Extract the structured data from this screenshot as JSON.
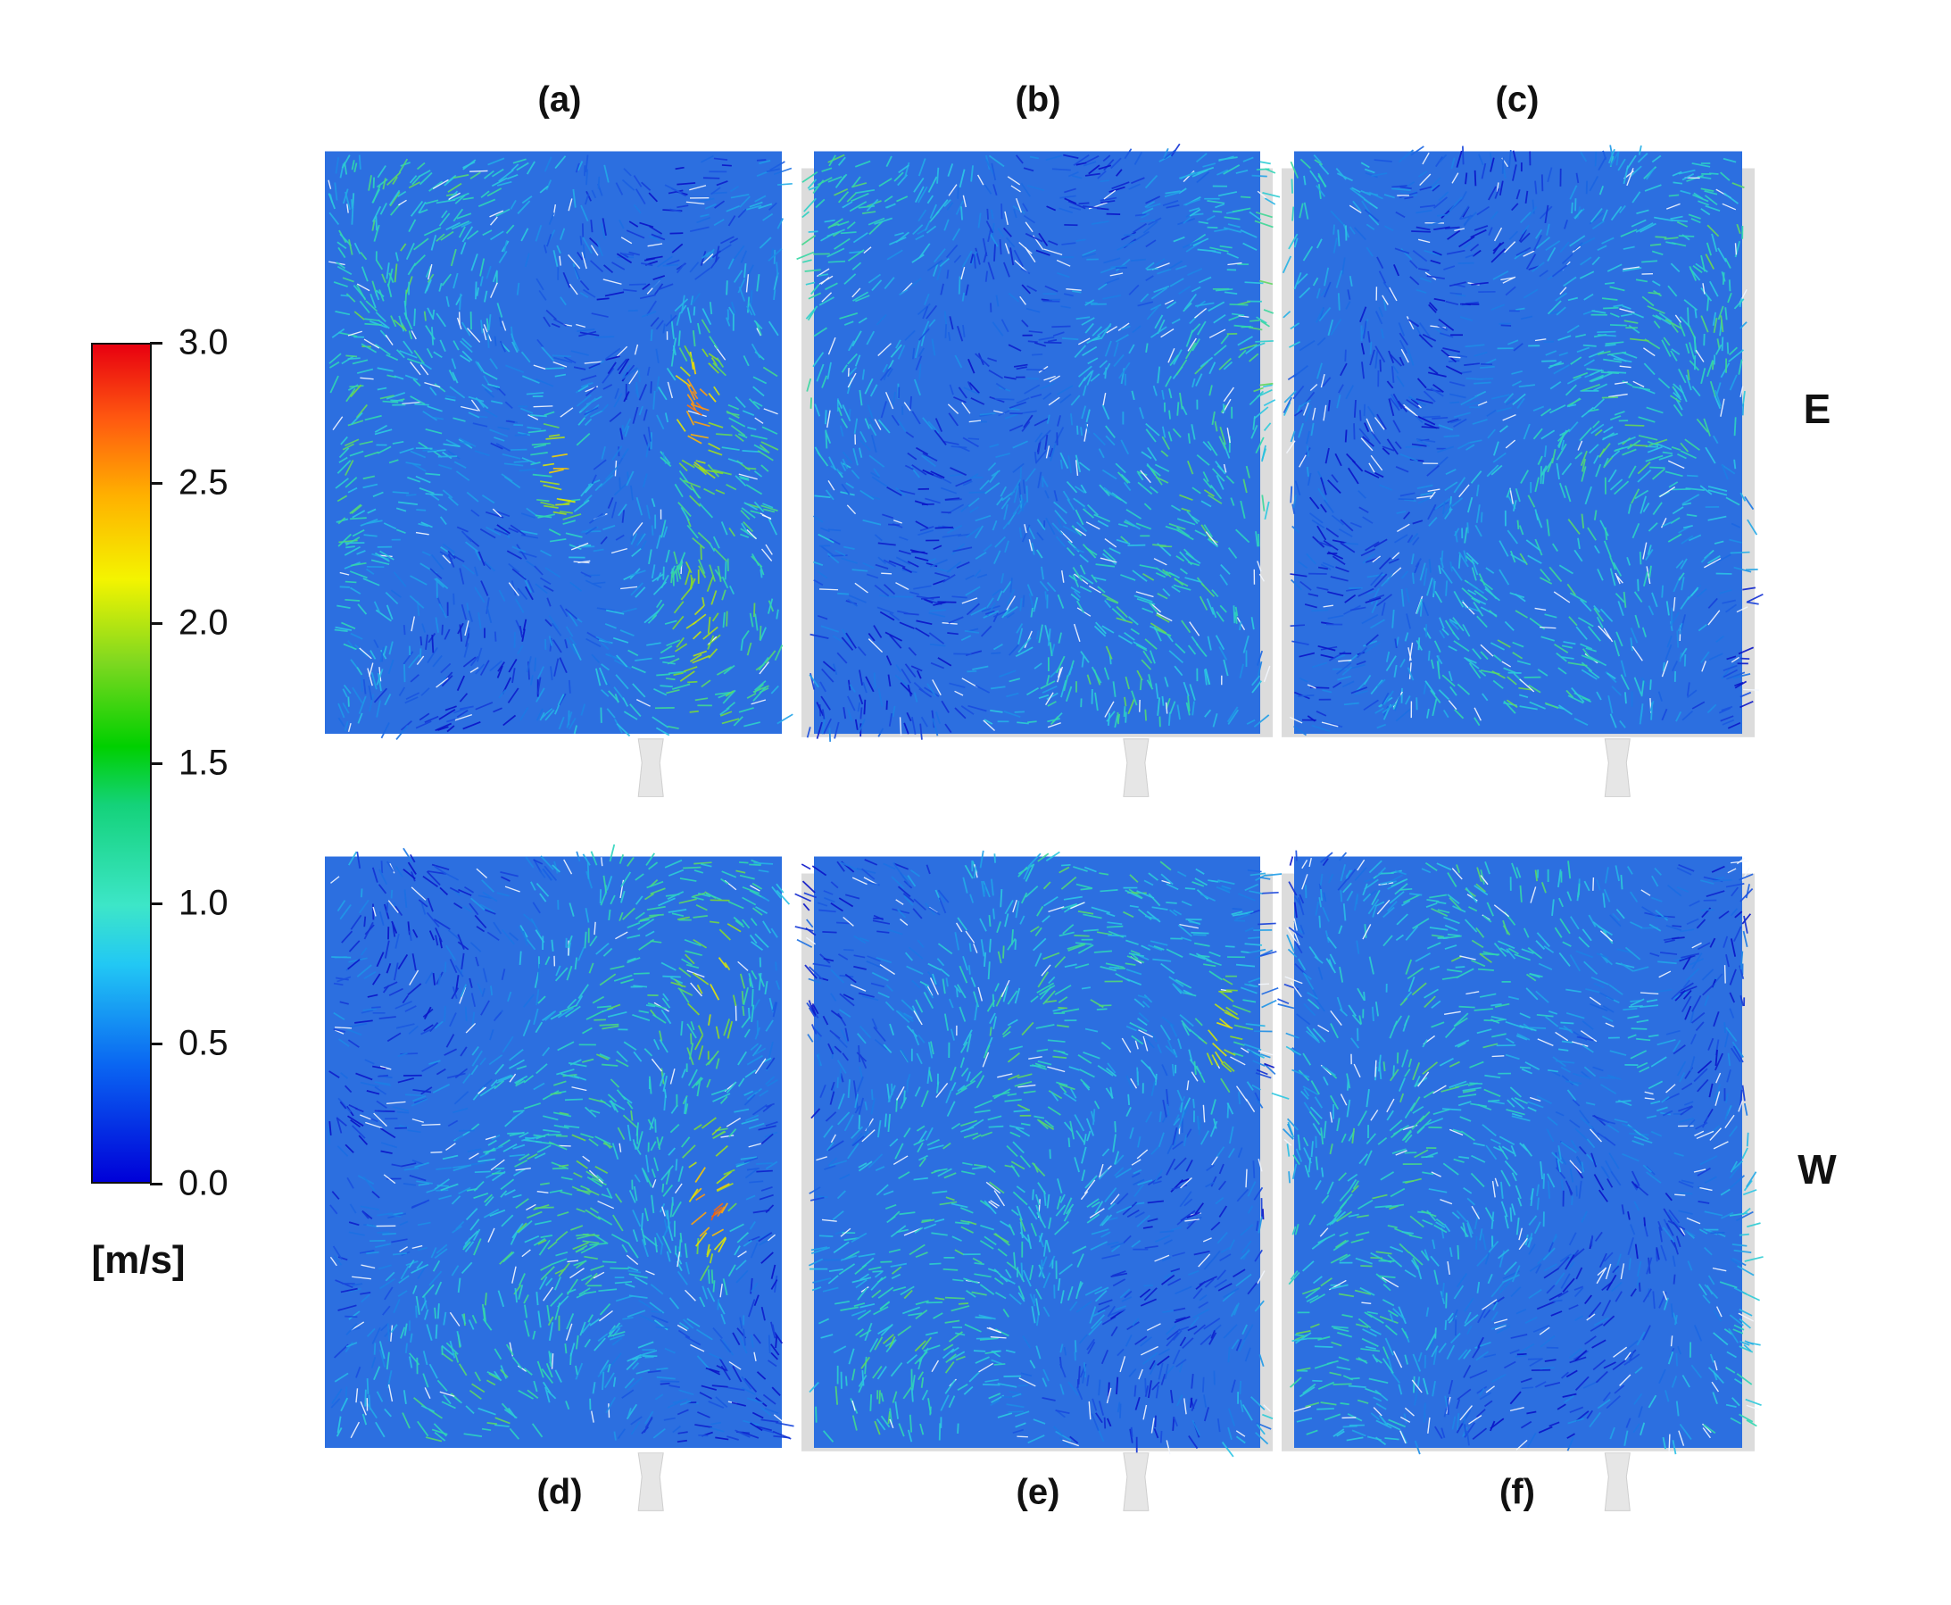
{
  "panels": [
    {
      "label": "(a)",
      "row": "E"
    },
    {
      "label": "(b)",
      "row": "E"
    },
    {
      "label": "(c)",
      "row": "E"
    },
    {
      "label": "(d)",
      "row": "W"
    },
    {
      "label": "(e)",
      "row": "W"
    },
    {
      "label": "(f)",
      "row": "W"
    }
  ],
  "row_labels": {
    "top": "E",
    "bottom": "W"
  },
  "colorbar": {
    "unit": "[m/s]",
    "min": 0.0,
    "max": 3.0,
    "ticks": [
      "0.0",
      "0.5",
      "1.0",
      "1.5",
      "2.0",
      "2.5",
      "3.0"
    ],
    "colors": [
      "#0000d8",
      "#0a66f2",
      "#22c8f4",
      "#3de6c8",
      "#00d000",
      "#f4f400",
      "#ff5a10",
      "#e80010"
    ]
  }
}
